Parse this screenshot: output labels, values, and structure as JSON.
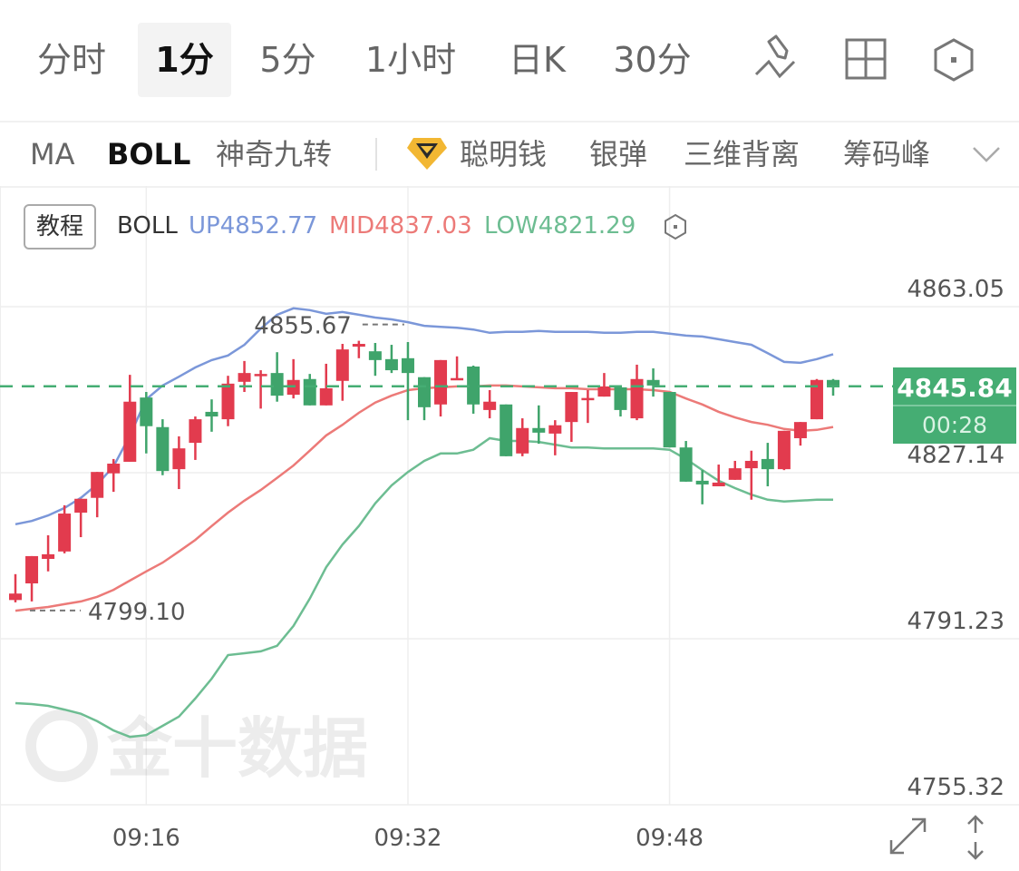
{
  "tabs": [
    {
      "label": "分时",
      "active": false
    },
    {
      "label": "1分",
      "active": true
    },
    {
      "label": "5分",
      "active": false
    },
    {
      "label": "1小时",
      "active": false
    },
    {
      "label": "日K",
      "active": false
    },
    {
      "label": "30分",
      "active": false
    }
  ],
  "toolbar_icons": [
    "draw-tool-icon",
    "layout-grid-icon",
    "settings-hexagon-icon"
  ],
  "indicators": {
    "items": [
      "MA",
      "BOLL",
      "神奇九转",
      "聪明钱",
      "银弹",
      "三维背离",
      "筹码峰"
    ],
    "active": "BOLL",
    "premium_icon": "diamond-badge-icon",
    "more_icon": "chevron-down-icon"
  },
  "legend": {
    "tutorial_label": "教程",
    "name": "BOLL",
    "up": "UP4852.77",
    "mid": "MID4837.03",
    "low": "LOW4821.29"
  },
  "colors": {
    "up_candle": "#e23b4e",
    "down_candle": "#3fa46b",
    "boll_up": "#7b97d9",
    "boll_mid": "#ec7a78",
    "boll_low": "#6dbd92",
    "last_price_bg": "#45ad73"
  },
  "last_price": {
    "value": "4845.84",
    "countdown": "00:28"
  },
  "watermark": "金十数据",
  "bottom_icons": [
    "expand-icon",
    "vertical-scale-icon"
  ],
  "chart_data": {
    "type": "candlestick",
    "interval": "1分",
    "y_ticks": [
      "4863.05",
      "4827.14",
      "4791.23",
      "4755.32"
    ],
    "ylim": [
      4755.32,
      4863.05
    ],
    "x_ticks": [
      "09:16",
      "09:32",
      "09:48"
    ],
    "grid": true,
    "max_label": "4855.67",
    "min_label": "4799.10",
    "current_price": 4845.84,
    "x": [
      "09:08",
      "09:09",
      "09:10",
      "09:11",
      "09:12",
      "09:13",
      "09:14",
      "09:15",
      "09:16",
      "09:17",
      "09:18",
      "09:19",
      "09:20",
      "09:21",
      "09:22",
      "09:23",
      "09:24",
      "09:25",
      "09:26",
      "09:27",
      "09:28",
      "09:29",
      "09:30",
      "09:31",
      "09:32",
      "09:33",
      "09:34",
      "09:35",
      "09:36",
      "09:37",
      "09:38",
      "09:39",
      "09:40",
      "09:41",
      "09:42",
      "09:43",
      "09:44",
      "09:45",
      "09:46",
      "09:47",
      "09:48",
      "09:49",
      "09:50",
      "09:51",
      "09:52",
      "09:53",
      "09:54",
      "09:55",
      "09:56",
      "09:57",
      "09:58"
    ],
    "ohlc": [
      [
        4799.6,
        4805.2,
        4799.1,
        4801.0
      ],
      [
        4803.2,
        4809.1,
        4799.3,
        4809.1
      ],
      [
        4808.5,
        4813.6,
        4805.8,
        4809.5
      ],
      [
        4810.1,
        4820.1,
        4809.7,
        4818.3
      ],
      [
        4818.5,
        4821.5,
        4813.2,
        4821.5
      ],
      [
        4821.7,
        4827.3,
        4817.5,
        4827.3
      ],
      [
        4827.0,
        4830.1,
        4823.0,
        4829.1
      ],
      [
        4829.5,
        4848.3,
        4829.5,
        4842.5
      ],
      [
        4843.4,
        4844.6,
        4831.3,
        4837.2
      ],
      [
        4837.0,
        4838.7,
        4826.6,
        4827.5
      ],
      [
        4827.9,
        4835.0,
        4823.6,
        4832.4
      ],
      [
        4833.6,
        4839.3,
        4829.9,
        4838.7
      ],
      [
        4840.3,
        4843.0,
        4836.0,
        4839.3
      ],
      [
        4838.7,
        4848.1,
        4837.2,
        4846.4
      ],
      [
        4846.8,
        4851.3,
        4844.6,
        4848.7
      ],
      [
        4848.3,
        4849.3,
        4841.0,
        4848.5
      ],
      [
        4848.7,
        4853.2,
        4842.5,
        4843.8
      ],
      [
        4844.0,
        4851.7,
        4843.2,
        4847.2
      ],
      [
        4847.4,
        4848.5,
        4841.7,
        4841.7
      ],
      [
        4841.7,
        4850.7,
        4841.7,
        4845.4
      ],
      [
        4847.0,
        4855.0,
        4842.7,
        4853.8
      ],
      [
        4854.4,
        4855.67,
        4851.9,
        4855.0
      ],
      [
        4853.4,
        4855.2,
        4848.1,
        4851.5
      ],
      [
        4851.7,
        4854.8,
        4848.7,
        4849.3
      ],
      [
        4851.9,
        4855.4,
        4838.5,
        4848.7
      ],
      [
        4847.8,
        4847.8,
        4838.5,
        4841.3
      ],
      [
        4841.9,
        4851.5,
        4839.3,
        4851.5
      ],
      [
        4847.4,
        4852.3,
        4847.4,
        4847.6
      ],
      [
        4850.1,
        4850.3,
        4839.9,
        4841.9
      ],
      [
        4840.7,
        4845.0,
        4838.9,
        4842.5
      ],
      [
        4841.9,
        4841.9,
        4830.7,
        4830.7
      ],
      [
        4831.3,
        4838.9,
        4830.7,
        4836.8
      ],
      [
        4836.8,
        4841.7,
        4833.4,
        4835.8
      ],
      [
        4835.6,
        4838.5,
        4830.9,
        4837.4
      ],
      [
        4838.1,
        4844.6,
        4833.8,
        4844.6
      ],
      [
        4843.0,
        4845.0,
        4837.9,
        4843.3
      ],
      [
        4843.6,
        4848.7,
        4843.6,
        4845.8
      ],
      [
        4845.6,
        4845.8,
        4839.3,
        4840.7
      ],
      [
        4838.9,
        4850.5,
        4838.5,
        4847.4
      ],
      [
        4847.2,
        4849.7,
        4843.6,
        4846.0
      ],
      [
        4844.6,
        4844.6,
        4832.6,
        4832.6
      ],
      [
        4832.6,
        4834.0,
        4825.2,
        4825.2
      ],
      [
        4825.4,
        4827.7,
        4820.3,
        4824.6
      ],
      [
        4824.2,
        4828.9,
        4824.2,
        4825.0
      ],
      [
        4825.6,
        4829.7,
        4825.6,
        4828.1
      ],
      [
        4828.1,
        4831.9,
        4821.3,
        4829.7
      ],
      [
        4830.1,
        4833.6,
        4824.2,
        4827.9
      ],
      [
        4827.9,
        4836.2,
        4827.7,
        4836.2
      ],
      [
        4834.6,
        4838.1,
        4833.0,
        4838.1
      ],
      [
        4838.7,
        4847.4,
        4838.7,
        4847.2
      ],
      [
        4847.2,
        4847.4,
        4843.8,
        4845.84
      ]
    ],
    "boll_up": [
      4816.0,
      4816.7,
      4817.9,
      4819.5,
      4821.7,
      4824.6,
      4828.5,
      4835.2,
      4843.0,
      4846.0,
      4847.9,
      4849.9,
      4851.5,
      4852.5,
      4854.8,
      4858.3,
      4861.3,
      4862.7,
      4862.3,
      4861.5,
      4861.9,
      4861.3,
      4860.7,
      4860.3,
      4859.7,
      4858.9,
      4858.7,
      4858.5,
      4858.1,
      4857.4,
      4857.6,
      4857.6,
      4857.8,
      4857.6,
      4857.6,
      4857.6,
      4857.4,
      4857.4,
      4857.6,
      4857.6,
      4857.2,
      4856.8,
      4856.6,
      4856.0,
      4855.4,
      4854.8,
      4853.0,
      4851.1,
      4850.9,
      4851.7,
      4852.77
    ],
    "boll_mid": [
      4797.3,
      4797.7,
      4798.1,
      4798.7,
      4799.3,
      4800.3,
      4801.8,
      4803.8,
      4805.8,
      4807.7,
      4810.1,
      4812.6,
      4815.6,
      4818.5,
      4821.1,
      4823.4,
      4826.0,
      4828.7,
      4831.9,
      4835.2,
      4837.5,
      4840.1,
      4842.3,
      4843.8,
      4845.0,
      4845.4,
      4845.6,
      4845.8,
      4845.8,
      4846.0,
      4846.0,
      4845.8,
      4845.6,
      4845.4,
      4845.4,
      4845.2,
      4845.2,
      4845.2,
      4845.2,
      4845.0,
      4844.6,
      4843.2,
      4841.9,
      4840.3,
      4839.1,
      4838.1,
      4837.5,
      4836.6,
      4836.2,
      4836.4,
      4837.03
    ],
    "boll_low": [
      4777.3,
      4777.1,
      4776.7,
      4775.9,
      4775.0,
      4773.4,
      4771.4,
      4770.0,
      4770.4,
      4772.4,
      4774.4,
      4778.3,
      4782.6,
      4787.7,
      4788.1,
      4788.5,
      4789.7,
      4794.0,
      4799.9,
      4806.7,
      4811.6,
      4815.6,
      4820.5,
      4824.4,
      4827.3,
      4829.7,
      4831.3,
      4831.3,
      4832.1,
      4834.6,
      4834.0,
      4834.0,
      4833.8,
      4833.2,
      4832.6,
      4832.6,
      4832.4,
      4832.4,
      4832.4,
      4832.4,
      4832.1,
      4830.1,
      4827.7,
      4825.4,
      4823.8,
      4822.4,
      4821.3,
      4820.9,
      4821.1,
      4821.3,
      4821.29
    ]
  }
}
